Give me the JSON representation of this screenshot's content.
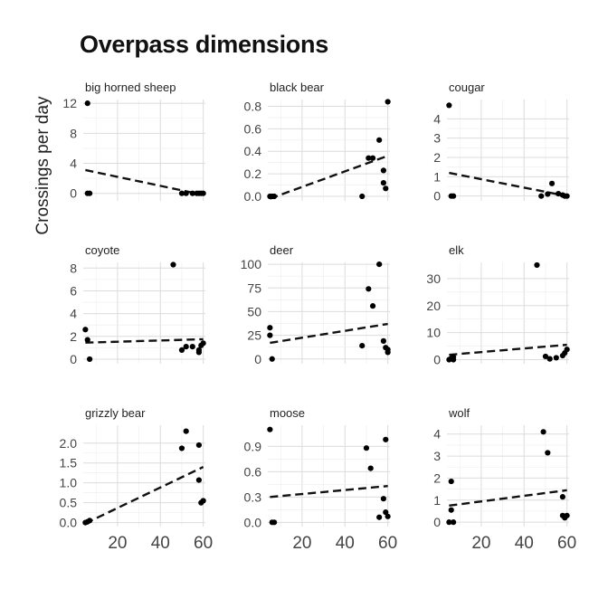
{
  "chart_data": {
    "type": "scatter",
    "title": "Overpass dimensions",
    "ylabel": "Crossings per day",
    "xlabel": "",
    "x_ticks": [
      20,
      40,
      60
    ],
    "xlim": [
      4,
      61
    ],
    "trend_style": "dashed",
    "grid": true,
    "panels": [
      {
        "name": "big horned sheep",
        "ylim": [
          -1,
          12.5
        ],
        "y_ticks": [
          "0",
          "4",
          "8",
          "12"
        ],
        "y_tick_values": [
          0,
          4,
          8,
          12
        ],
        "x": [
          6,
          6,
          7,
          50,
          52,
          55,
          57,
          58,
          59,
          60
        ],
        "y": [
          12,
          0,
          0,
          0,
          0,
          0,
          0,
          0,
          0,
          0
        ],
        "trend": [
          [
            5,
            3.1
          ],
          [
            60,
            -0.2
          ]
        ]
      },
      {
        "name": "black bear",
        "ylim": [
          -0.04,
          0.86
        ],
        "y_ticks": [
          "0.0",
          "0.2",
          "0.4",
          "0.6",
          "0.8"
        ],
        "y_tick_values": [
          0,
          0.2,
          0.4,
          0.6,
          0.8
        ],
        "x": [
          5,
          6,
          7,
          48,
          51,
          53,
          56,
          58,
          58,
          59,
          60
        ],
        "y": [
          0,
          0,
          0,
          0,
          0.34,
          0.34,
          0.5,
          0.23,
          0.12,
          0.07,
          0.84
        ],
        "trend": [
          [
            5,
            -0.02
          ],
          [
            60,
            0.36
          ]
        ]
      },
      {
        "name": "cougar",
        "ylim": [
          -0.25,
          5.0
        ],
        "y_ticks": [
          "0",
          "1",
          "2",
          "3",
          "4"
        ],
        "y_tick_values": [
          0,
          1,
          2,
          3,
          4
        ],
        "x": [
          5,
          6,
          7,
          48,
          51,
          53,
          56,
          58,
          59,
          60
        ],
        "y": [
          4.7,
          0,
          0,
          0,
          0.1,
          0.65,
          0.12,
          0.05,
          0,
          0
        ],
        "trend": [
          [
            5,
            1.2
          ],
          [
            60,
            0.0
          ]
        ]
      },
      {
        "name": "coyote",
        "ylim": [
          -0.4,
          8.5
        ],
        "y_ticks": [
          "0",
          "2",
          "4",
          "6",
          "8"
        ],
        "y_tick_values": [
          0,
          2,
          4,
          6,
          8
        ],
        "x": [
          5,
          6,
          7,
          46,
          50,
          52,
          55,
          58,
          58,
          59,
          60
        ],
        "y": [
          2.6,
          1.7,
          0,
          8.3,
          0.8,
          1.1,
          1.1,
          0.6,
          0.8,
          1.2,
          1.4
        ],
        "trend": [
          [
            5,
            1.45
          ],
          [
            60,
            1.75
          ]
        ]
      },
      {
        "name": "deer",
        "ylim": [
          -5,
          102
        ],
        "y_ticks": [
          "0",
          "25",
          "50",
          "75",
          "100"
        ],
        "y_tick_values": [
          0,
          25,
          50,
          75,
          100
        ],
        "x": [
          5,
          5,
          6,
          48,
          51,
          53,
          56,
          58,
          59,
          60,
          60
        ],
        "y": [
          33,
          25,
          0,
          14,
          74,
          56,
          100,
          19,
          12,
          10,
          7
        ],
        "trend": [
          [
            5,
            17
          ],
          [
            60,
            37
          ]
        ]
      },
      {
        "name": "elk",
        "ylim": [
          -1.5,
          36
        ],
        "y_ticks": [
          "0",
          "10",
          "20",
          "30"
        ],
        "y_tick_values": [
          0,
          10,
          20,
          30
        ],
        "x": [
          5,
          6,
          7,
          7,
          46,
          50,
          52,
          55,
          58,
          59,
          60
        ],
        "y": [
          0,
          0.5,
          1,
          0,
          35,
          1.2,
          0.3,
          0.7,
          1.5,
          2.5,
          3.8
        ],
        "trend": [
          [
            5,
            1.8
          ],
          [
            60,
            5.5
          ]
        ]
      },
      {
        "name": "grizzly bear",
        "ylim": [
          -0.1,
          2.45
        ],
        "y_ticks": [
          "0.0",
          "0.5",
          "1.0",
          "1.5",
          "2.0"
        ],
        "y_tick_values": [
          0,
          0.5,
          1.0,
          1.5,
          2.0
        ],
        "x": [
          5,
          6,
          7,
          50,
          52,
          58,
          58,
          59,
          60
        ],
        "y": [
          0,
          0.02,
          0.05,
          1.87,
          2.3,
          1.95,
          1.07,
          0.5,
          0.55
        ],
        "trend": [
          [
            5,
            -0.02
          ],
          [
            60,
            1.4
          ]
        ]
      },
      {
        "name": "moose",
        "ylim": [
          -0.05,
          1.15
        ],
        "y_ticks": [
          "0.0",
          "0.3",
          "0.6",
          "0.9"
        ],
        "y_tick_values": [
          0,
          0.3,
          0.6,
          0.9
        ],
        "x": [
          5,
          6,
          7,
          50,
          52,
          56,
          58,
          59,
          59,
          60
        ],
        "y": [
          1.1,
          0,
          0,
          0.88,
          0.64,
          0.06,
          0.28,
          0.12,
          0.98,
          0.07
        ],
        "trend": [
          [
            5,
            0.3
          ],
          [
            60,
            0.43
          ]
        ]
      },
      {
        "name": "wolf",
        "ylim": [
          -0.2,
          4.4
        ],
        "y_ticks": [
          "0",
          "1",
          "2",
          "3",
          "4"
        ],
        "y_tick_values": [
          0,
          1,
          2,
          3,
          4
        ],
        "x": [
          5,
          6,
          6,
          7,
          49,
          51,
          58,
          58,
          59,
          60
        ],
        "y": [
          0,
          0.55,
          1.85,
          0,
          4.1,
          3.15,
          1.15,
          0.3,
          0.2,
          0.3
        ],
        "trend": [
          [
            5,
            0.75
          ],
          [
            60,
            1.45
          ]
        ]
      }
    ]
  }
}
